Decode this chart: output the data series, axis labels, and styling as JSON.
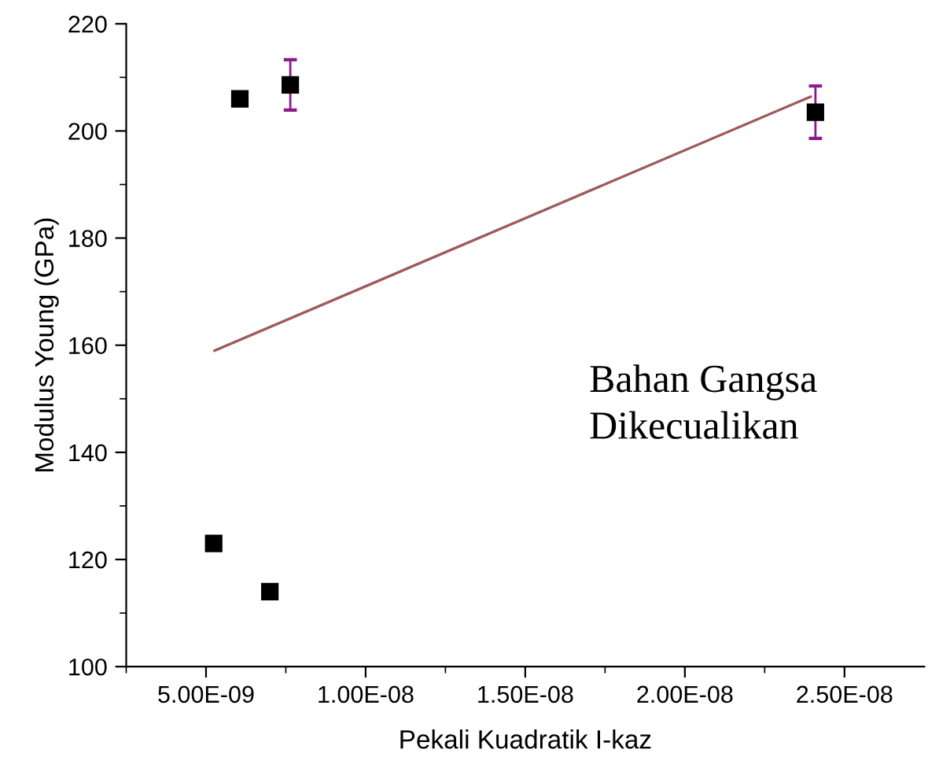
{
  "chart_data": {
    "type": "scatter",
    "xlabel": "Pekali Kuadratik I-kaz",
    "ylabel": "Modulus Young (GPa)",
    "annotations": [
      "Bahan Gangsa\nDikecualikan"
    ],
    "series": [
      {
        "color": "#000000",
        "x": [
          6.06e-09,
          7.64e-09,
          2.409e-08,
          5.24e-09,
          7e-09
        ],
        "values": [
          206,
          208.6,
          203.5,
          123,
          114
        ],
        "errors": [
          null,
          4.7,
          4.9,
          null,
          null
        ],
        "marker": "square"
      },
      {
        "type": "line",
        "color": "#a05a5a",
        "x": [
          5.27e-09,
          2.394e-08
        ],
        "values": [
          159,
          206.4
        ]
      }
    ],
    "xlim": [
      2.5e-09,
      2.75e-08
    ],
    "xticks": [
      {
        "value": 5e-09,
        "label": "5.00E-09"
      },
      {
        "value": 1e-08,
        "label": "1.00E-08"
      },
      {
        "value": 1.5e-08,
        "label": "1.50E-08"
      },
      {
        "value": 2e-08,
        "label": "2.00E-08"
      },
      {
        "value": 2.5e-08,
        "label": "2.50E-08"
      }
    ],
    "ylim": [
      100,
      220
    ],
    "yticks": [
      100,
      120,
      140,
      160,
      180,
      200,
      220
    ],
    "grid": false,
    "legend": false
  }
}
